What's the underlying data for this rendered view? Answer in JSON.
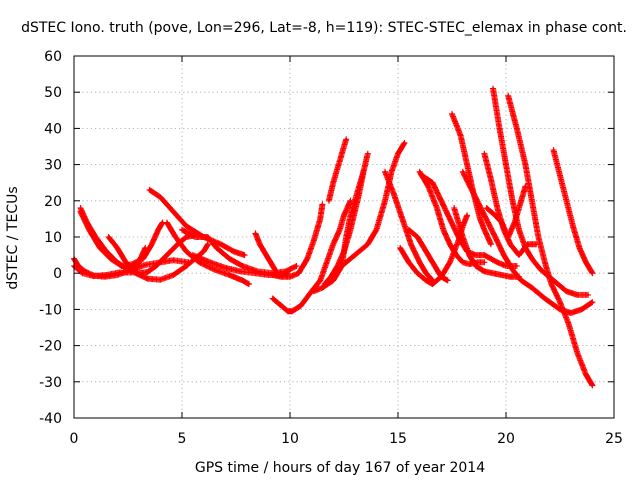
{
  "chart_data": {
    "type": "scatter",
    "title": "dSTEC Iono. truth (pove, Lon=296, Lat=-8, h=119): STEC-STEC_elemax in phase cont.",
    "xlabel": "GPS time / hours of day 167 of year 2014",
    "ylabel": "dSTEC  / TECUs",
    "xlim": [
      0,
      25
    ],
    "ylim": [
      -40,
      60
    ],
    "xticks": [
      "0",
      "5",
      "10",
      "15",
      "20",
      "25"
    ],
    "yticks": [
      "-40",
      "-30",
      "-20",
      "-10",
      "0",
      "10",
      "20",
      "30",
      "40",
      "50",
      "60"
    ],
    "grid": true,
    "marker": "+",
    "color": "#ff0000",
    "arcs": [
      [
        [
          0.0,
          4
        ],
        [
          0.2,
          2
        ],
        [
          0.5,
          0.5
        ],
        [
          0.9,
          -0.6
        ],
        [
          1.4,
          -1
        ],
        [
          2.0,
          -0.5
        ],
        [
          2.6,
          0.8
        ],
        [
          3.3,
          2.3
        ],
        [
          4.0,
          3
        ],
        [
          4.6,
          3.6
        ],
        [
          5.3,
          3
        ]
      ],
      [
        [
          0.0,
          2
        ],
        [
          0.4,
          0
        ],
        [
          0.9,
          -0.8
        ],
        [
          1.5,
          -0.5
        ],
        [
          2.1,
          0.2
        ],
        [
          2.8,
          0.2
        ],
        [
          3.4,
          -1.5
        ],
        [
          4.0,
          -1.8
        ],
        [
          4.6,
          -0.5
        ],
        [
          5.2,
          2
        ],
        [
          5.6,
          4
        ],
        [
          6.0,
          6
        ],
        [
          6.2,
          8
        ]
      ],
      [
        [
          0.3,
          18
        ],
        [
          0.6,
          14
        ],
        [
          1.0,
          10
        ],
        [
          1.5,
          6
        ],
        [
          2.0,
          3
        ],
        [
          2.5,
          1
        ],
        [
          3.0,
          0
        ],
        [
          3.4,
          0.3
        ],
        [
          3.8,
          2
        ],
        [
          4.3,
          5
        ],
        [
          4.8,
          8
        ],
        [
          5.2,
          10
        ],
        [
          5.6,
          10.5
        ]
      ],
      [
        [
          0.3,
          17
        ],
        [
          0.7,
          12
        ],
        [
          1.2,
          7
        ],
        [
          1.7,
          4
        ],
        [
          2.2,
          2
        ],
        [
          2.7,
          2.5
        ],
        [
          3.2,
          4
        ],
        [
          3.6,
          8
        ],
        [
          3.9,
          12
        ],
        [
          4.1,
          14
        ]
      ],
      [
        [
          1.6,
          10
        ],
        [
          2.0,
          7
        ],
        [
          2.4,
          3
        ],
        [
          2.8,
          1
        ],
        [
          3.0,
          3
        ],
        [
          3.3,
          7
        ]
      ],
      [
        [
          3.5,
          23
        ],
        [
          4.0,
          21
        ],
        [
          4.6,
          17
        ],
        [
          5.2,
          13
        ],
        [
          6.0,
          10
        ],
        [
          6.8,
          8
        ],
        [
          7.4,
          6
        ],
        [
          7.9,
          5
        ]
      ],
      [
        [
          4.3,
          14
        ],
        [
          4.7,
          10
        ],
        [
          5.2,
          6
        ],
        [
          5.8,
          3
        ],
        [
          6.5,
          1
        ],
        [
          7.2,
          -0.5
        ],
        [
          7.8,
          -2
        ],
        [
          8.1,
          -3
        ]
      ],
      [
        [
          5.0,
          12
        ],
        [
          5.6,
          10
        ],
        [
          6.2,
          10
        ],
        [
          6.6,
          7
        ],
        [
          7.2,
          4
        ],
        [
          7.8,
          2
        ],
        [
          8.5,
          0.5
        ],
        [
          9.2,
          0
        ],
        [
          9.8,
          0.5
        ],
        [
          10.3,
          2
        ]
      ],
      [
        [
          5.5,
          5
        ],
        [
          6.3,
          3
        ],
        [
          7.0,
          1.5
        ],
        [
          7.7,
          0.5
        ],
        [
          8.4,
          0
        ],
        [
          9.0,
          -0.5
        ],
        [
          9.5,
          -0.5
        ],
        [
          9.9,
          0
        ]
      ],
      [
        [
          8.4,
          11
        ],
        [
          8.6,
          8
        ],
        [
          8.9,
          5
        ],
        [
          9.2,
          2
        ],
        [
          9.4,
          0
        ]
      ],
      [
        [
          9.2,
          -0.5
        ],
        [
          9.6,
          -1
        ],
        [
          10.0,
          -1
        ],
        [
          10.4,
          0
        ],
        [
          10.8,
          4
        ],
        [
          11.1,
          9
        ],
        [
          11.4,
          15
        ],
        [
          11.5,
          19
        ]
      ],
      [
        [
          9.2,
          -7
        ],
        [
          9.6,
          -9
        ],
        [
          9.9,
          -10.5
        ],
        [
          10.1,
          -10.5
        ],
        [
          10.5,
          -9
        ],
        [
          11.0,
          -5
        ],
        [
          11.4,
          -2
        ],
        [
          11.7,
          3
        ],
        [
          12.0,
          8
        ],
        [
          12.3,
          12
        ],
        [
          12.5,
          16
        ],
        [
          12.8,
          20
        ]
      ],
      [
        [
          11.6,
          -3
        ],
        [
          11.9,
          -1
        ],
        [
          12.2,
          2
        ],
        [
          12.5,
          6
        ],
        [
          12.8,
          12
        ],
        [
          13.0,
          17
        ],
        [
          13.2,
          22
        ],
        [
          13.4,
          28
        ],
        [
          13.6,
          33
        ]
      ],
      [
        [
          11.1,
          -5
        ],
        [
          11.5,
          -4
        ],
        [
          12.0,
          -2
        ],
        [
          12.4,
          2
        ],
        [
          12.6,
          10
        ],
        [
          12.8,
          16
        ],
        [
          13.0,
          20
        ],
        [
          13.2,
          24
        ],
        [
          13.4,
          28
        ]
      ],
      [
        [
          12.4,
          2
        ],
        [
          12.8,
          4
        ],
        [
          13.2,
          6
        ],
        [
          13.6,
          8
        ],
        [
          14.0,
          12
        ],
        [
          14.4,
          20
        ],
        [
          14.7,
          28
        ],
        [
          15.0,
          33
        ],
        [
          15.3,
          36
        ]
      ],
      [
        [
          11.8,
          20
        ],
        [
          12.0,
          25
        ],
        [
          12.2,
          29
        ],
        [
          12.4,
          33
        ],
        [
          12.6,
          37
        ]
      ],
      [
        [
          14.4,
          28
        ],
        [
          14.8,
          22
        ],
        [
          15.2,
          15
        ],
        [
          15.6,
          8
        ],
        [
          16.0,
          3
        ],
        [
          16.3,
          0
        ],
        [
          16.6,
          -2
        ]
      ],
      [
        [
          15.1,
          7
        ],
        [
          15.5,
          3
        ],
        [
          15.9,
          0
        ],
        [
          16.3,
          -2
        ],
        [
          16.6,
          -3
        ],
        [
          17.0,
          -1
        ],
        [
          17.4,
          3
        ],
        [
          17.8,
          9
        ],
        [
          18.0,
          13
        ],
        [
          18.2,
          16
        ]
      ],
      [
        [
          15.5,
          12
        ],
        [
          15.9,
          10
        ],
        [
          16.3,
          6
        ],
        [
          16.7,
          2
        ],
        [
          17.0,
          -1
        ],
        [
          17.3,
          -2
        ]
      ],
      [
        [
          16.0,
          28
        ],
        [
          16.4,
          24
        ],
        [
          16.8,
          18
        ],
        [
          17.1,
          12
        ],
        [
          17.4,
          8
        ],
        [
          17.7,
          5
        ],
        [
          18.0,
          3
        ],
        [
          18.3,
          2.5
        ],
        [
          18.7,
          3
        ],
        [
          19.0,
          3
        ]
      ],
      [
        [
          16.1,
          27
        ],
        [
          16.6,
          25
        ],
        [
          17.0,
          20
        ],
        [
          17.4,
          15
        ],
        [
          17.8,
          10
        ],
        [
          18.2,
          6
        ],
        [
          18.6,
          5
        ],
        [
          19.0,
          5
        ],
        [
          19.6,
          3
        ],
        [
          20.0,
          2
        ],
        [
          20.5,
          2
        ]
      ],
      [
        [
          17.5,
          44
        ],
        [
          17.9,
          38
        ],
        [
          18.2,
          30
        ],
        [
          18.5,
          22
        ],
        [
          18.8,
          15
        ],
        [
          19.0,
          12
        ],
        [
          19.3,
          8
        ]
      ],
      [
        [
          17.6,
          18
        ],
        [
          18.0,
          10
        ],
        [
          18.3,
          5
        ],
        [
          18.6,
          2
        ],
        [
          19.0,
          0.5
        ],
        [
          19.4,
          0
        ],
        [
          19.8,
          -0.5
        ],
        [
          20.2,
          -1
        ],
        [
          20.6,
          -1
        ]
      ],
      [
        [
          18.0,
          28
        ],
        [
          18.5,
          22
        ],
        [
          19.0,
          16
        ],
        [
          19.5,
          10
        ],
        [
          19.9,
          5
        ],
        [
          20.3,
          1
        ],
        [
          20.7,
          -2
        ],
        [
          21.2,
          -4
        ],
        [
          21.8,
          -7
        ],
        [
          22.5,
          -10
        ],
        [
          23.0,
          -11
        ],
        [
          23.5,
          -10
        ],
        [
          24.0,
          -8
        ]
      ],
      [
        [
          19.4,
          51
        ],
        [
          19.7,
          40
        ],
        [
          20.0,
          30
        ],
        [
          20.3,
          20
        ],
        [
          20.6,
          12
        ],
        [
          20.9,
          7
        ],
        [
          21.2,
          4
        ],
        [
          21.6,
          1
        ],
        [
          22.2,
          -2
        ],
        [
          22.8,
          -5
        ],
        [
          23.3,
          -6
        ],
        [
          23.8,
          -6
        ]
      ],
      [
        [
          20.1,
          49
        ],
        [
          20.5,
          40
        ],
        [
          20.9,
          30
        ],
        [
          21.2,
          20
        ],
        [
          21.5,
          10
        ],
        [
          21.8,
          3
        ],
        [
          22.1,
          -3
        ],
        [
          22.5,
          -8
        ],
        [
          22.9,
          -14
        ],
        [
          23.3,
          -22
        ],
        [
          23.7,
          -28
        ],
        [
          24.0,
          -31
        ]
      ],
      [
        [
          19.0,
          33
        ],
        [
          19.3,
          26
        ],
        [
          19.6,
          18
        ],
        [
          19.9,
          12
        ],
        [
          20.2,
          8
        ],
        [
          20.6,
          5
        ],
        [
          21.0,
          8
        ],
        [
          21.4,
          8
        ]
      ],
      [
        [
          19.1,
          18
        ],
        [
          19.5,
          16
        ],
        [
          19.8,
          14
        ],
        [
          20.1,
          10
        ],
        [
          20.4,
          14
        ],
        [
          20.6,
          18
        ],
        [
          20.9,
          24
        ]
      ],
      [
        [
          22.2,
          34
        ],
        [
          22.5,
          27
        ],
        [
          22.8,
          20
        ],
        [
          23.1,
          13
        ],
        [
          23.4,
          7
        ],
        [
          23.7,
          3
        ],
        [
          24.0,
          0
        ]
      ]
    ]
  }
}
